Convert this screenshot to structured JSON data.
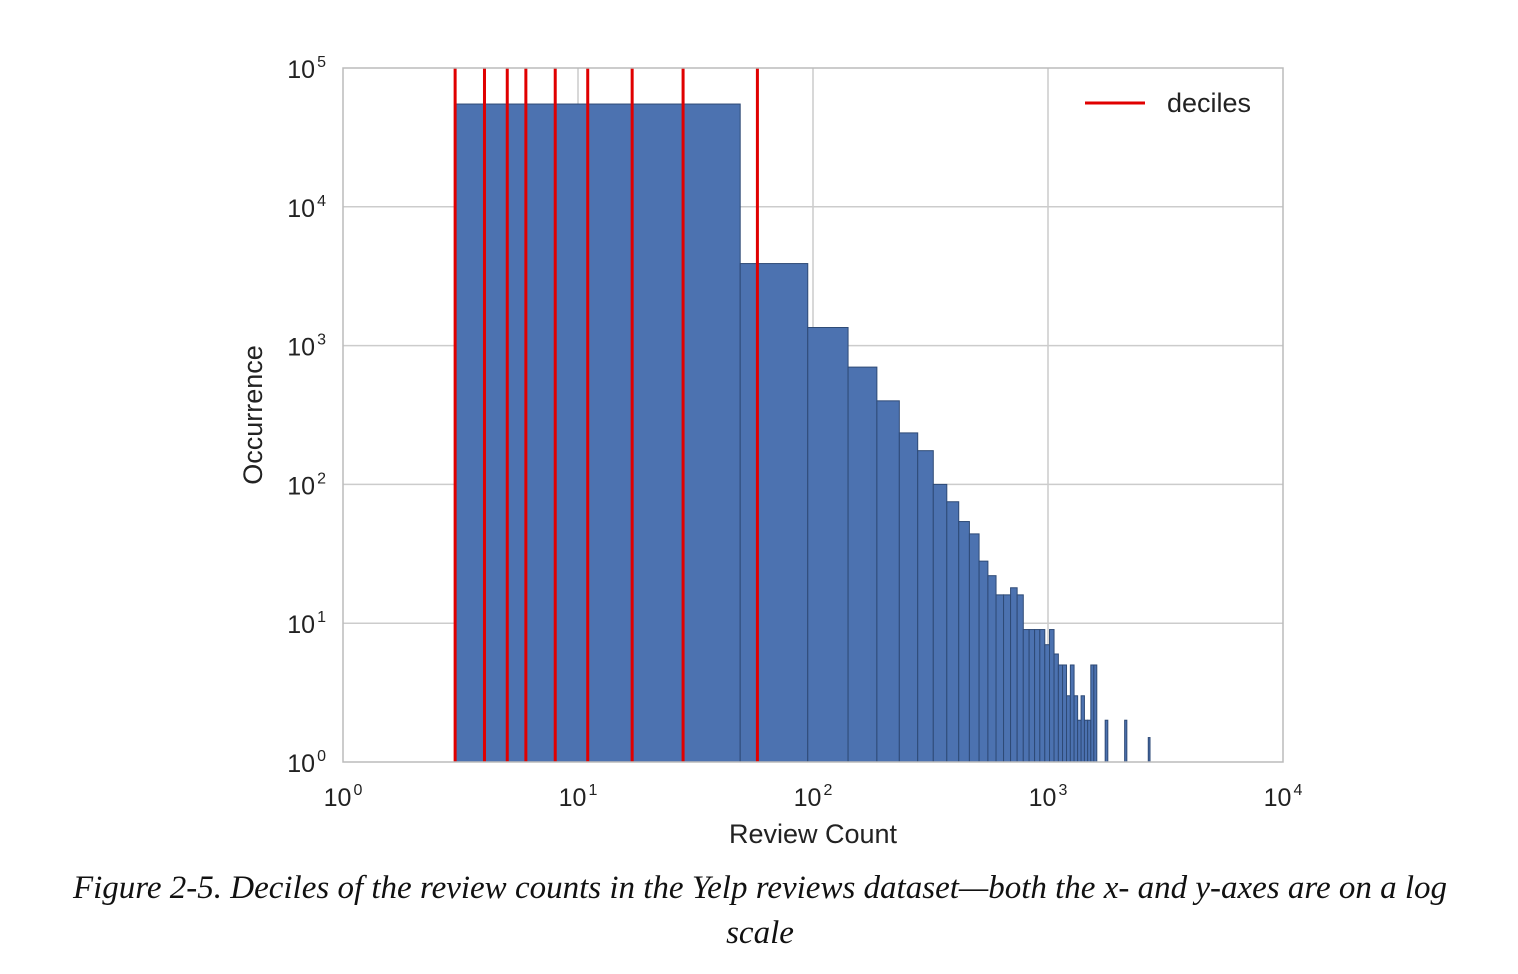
{
  "caption": "Figure 2-5. Deciles of the review counts in the Yelp reviews dataset—both the x- and y-axes are on a log scale",
  "chart_data": {
    "type": "bar",
    "xlabel": "Review Count",
    "ylabel": "Occurrence",
    "xscale": "log",
    "yscale": "log",
    "xlim": [
      1,
      10000
    ],
    "ylim": [
      1,
      100000
    ],
    "grid": true,
    "legend": {
      "position": "top-right",
      "entries": [
        "deciles"
      ]
    },
    "x_ticks": [
      {
        "base": "10",
        "exp": "0"
      },
      {
        "base": "10",
        "exp": "1"
      },
      {
        "base": "10",
        "exp": "2"
      },
      {
        "base": "10",
        "exp": "3"
      },
      {
        "base": "10",
        "exp": "4"
      }
    ],
    "y_ticks": [
      {
        "base": "10",
        "exp": "0"
      },
      {
        "base": "10",
        "exp": "1"
      },
      {
        "base": "10",
        "exp": "2"
      },
      {
        "base": "10",
        "exp": "3"
      },
      {
        "base": "10",
        "exp": "4"
      },
      {
        "base": "10",
        "exp": "5"
      }
    ],
    "bins": [
      {
        "x0": 3,
        "x1": 49,
        "count": 55000
      },
      {
        "x0": 49,
        "x1": 95,
        "count": 3900
      },
      {
        "x0": 95,
        "x1": 141,
        "count": 1350
      },
      {
        "x0": 141,
        "x1": 187,
        "count": 700
      },
      {
        "x0": 187,
        "x1": 233,
        "count": 400
      },
      {
        "x0": 233,
        "x1": 279,
        "count": 235
      },
      {
        "x0": 279,
        "x1": 325,
        "count": 175
      },
      {
        "x0": 325,
        "x1": 371,
        "count": 100
      },
      {
        "x0": 371,
        "x1": 417,
        "count": 75
      },
      {
        "x0": 417,
        "x1": 463,
        "count": 54
      },
      {
        "x0": 463,
        "x1": 509,
        "count": 44
      },
      {
        "x0": 509,
        "x1": 555,
        "count": 28
      },
      {
        "x0": 555,
        "x1": 601,
        "count": 22
      },
      {
        "x0": 601,
        "x1": 647,
        "count": 16
      },
      {
        "x0": 647,
        "x1": 693,
        "count": 16
      },
      {
        "x0": 693,
        "x1": 739,
        "count": 18
      },
      {
        "x0": 739,
        "x1": 785,
        "count": 16
      },
      {
        "x0": 785,
        "x1": 831,
        "count": 9
      },
      {
        "x0": 831,
        "x1": 877,
        "count": 9
      },
      {
        "x0": 877,
        "x1": 923,
        "count": 9
      },
      {
        "x0": 923,
        "x1": 969,
        "count": 9
      },
      {
        "x0": 969,
        "x1": 1015,
        "count": 7
      },
      {
        "x0": 1015,
        "x1": 1061,
        "count": 9
      },
      {
        "x0": 1061,
        "x1": 1107,
        "count": 6
      },
      {
        "x0": 1107,
        "x1": 1153,
        "count": 5
      },
      {
        "x0": 1153,
        "x1": 1199,
        "count": 5
      },
      {
        "x0": 1199,
        "x1": 1245,
        "count": 3
      },
      {
        "x0": 1245,
        "x1": 1291,
        "count": 5
      },
      {
        "x0": 1291,
        "x1": 1337,
        "count": 3
      },
      {
        "x0": 1337,
        "x1": 1383,
        "count": 2
      },
      {
        "x0": 1383,
        "x1": 1429,
        "count": 3
      },
      {
        "x0": 1429,
        "x1": 1475,
        "count": 2
      },
      {
        "x0": 1475,
        "x1": 1521,
        "count": 2
      },
      {
        "x0": 1521,
        "x1": 1567,
        "count": 5
      },
      {
        "x0": 1567,
        "x1": 1613,
        "count": 5
      },
      {
        "x0": 1751,
        "x1": 1797,
        "count": 2
      },
      {
        "x0": 2119,
        "x1": 2165,
        "count": 2
      },
      {
        "x0": 2671,
        "x1": 2717,
        "count": 1.5
      }
    ],
    "deciles": [
      3,
      4,
      5,
      6,
      8,
      11,
      17,
      28,
      58
    ]
  },
  "colors": {
    "bar_fill": "#4c72b0",
    "bar_edge": "#2e4a76",
    "decile_line": "#e00000",
    "grid": "#cccccc",
    "frame": "#bbbbbb"
  }
}
